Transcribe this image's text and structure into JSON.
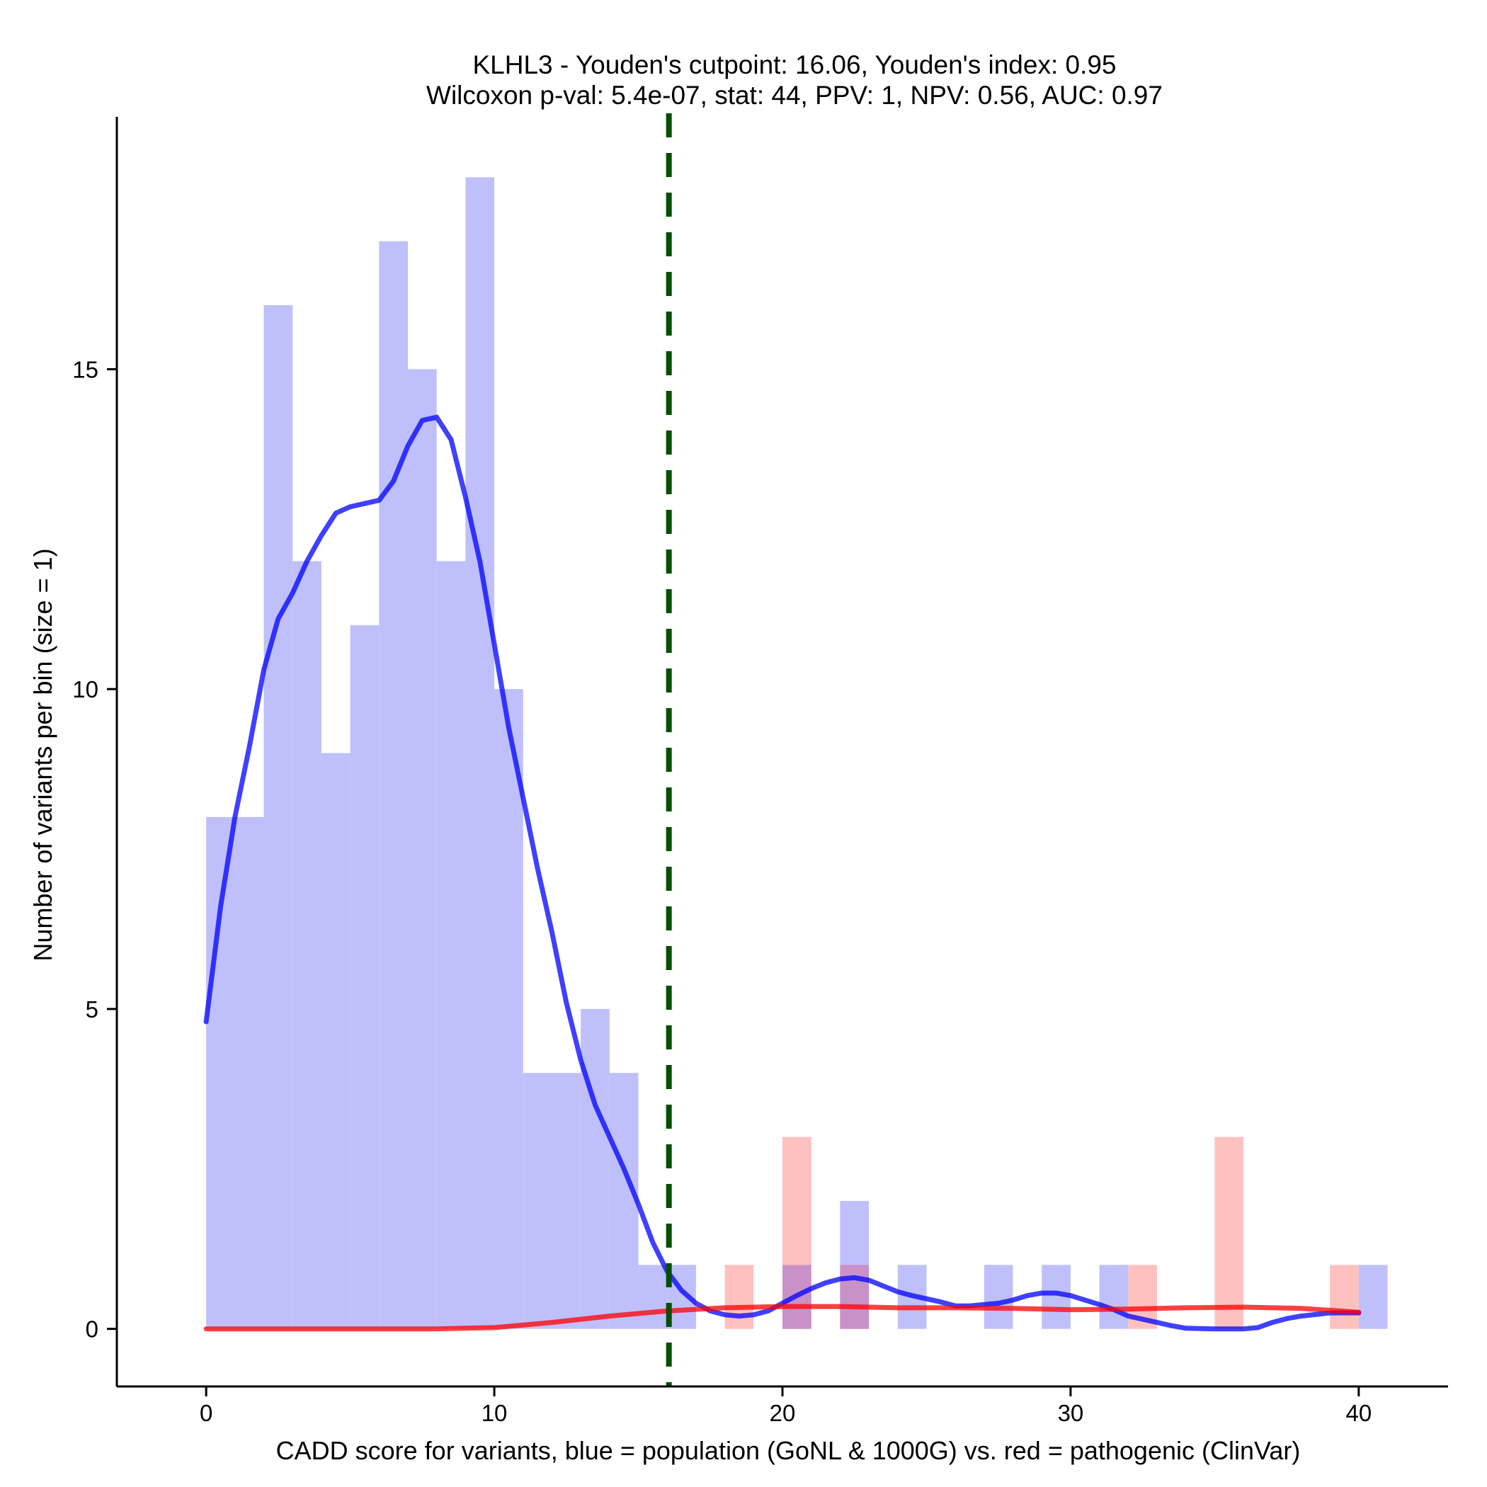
{
  "chart_data": {
    "type": "histogram",
    "title_line1": "KLHL3 - Youden's cutpoint: 16.06, Youden's index: 0.95",
    "title_line2": "Wilcoxon p-val: 5.4e-07, stat: 44, PPV: 1, NPV: 0.56, AUC: 0.97",
    "xlabel": "CADD score for variants, blue = population (GoNL & 1000G) vs. red = pathogenic (ClinVar)",
    "ylabel": "Number of variants per bin (size = 1)",
    "xlim": [
      -3.1,
      43.1
    ],
    "ylim": [
      -0.9,
      19.0
    ],
    "x_ticks": [
      0,
      10,
      20,
      30,
      40
    ],
    "x_tick_labels": [
      "0",
      "10",
      "20",
      "30",
      "40"
    ],
    "y_ticks": [
      0,
      5,
      10,
      15
    ],
    "y_tick_labels": [
      "0",
      "5",
      "10",
      "15"
    ],
    "bin_width": 1,
    "cutpoint": 16.06,
    "series": [
      {
        "name": "population (GoNL & 1000G)",
        "color": "#0000ff",
        "bar_color": "#bfbffb",
        "bins": [
          {
            "x": 0,
            "count": 8
          },
          {
            "x": 1,
            "count": 8
          },
          {
            "x": 2,
            "count": 16
          },
          {
            "x": 3,
            "count": 12
          },
          {
            "x": 4,
            "count": 9
          },
          {
            "x": 5,
            "count": 11
          },
          {
            "x": 6,
            "count": 17
          },
          {
            "x": 7,
            "count": 15
          },
          {
            "x": 8,
            "count": 12
          },
          {
            "x": 9,
            "count": 18
          },
          {
            "x": 10,
            "count": 10
          },
          {
            "x": 11,
            "count": 4
          },
          {
            "x": 12,
            "count": 4
          },
          {
            "x": 13,
            "count": 5
          },
          {
            "x": 14,
            "count": 4
          },
          {
            "x": 15,
            "count": 1
          },
          {
            "x": 16,
            "count": 1
          },
          {
            "x": 20,
            "count": 1
          },
          {
            "x": 22,
            "count": 2
          },
          {
            "x": 24,
            "count": 1
          },
          {
            "x": 27,
            "count": 1
          },
          {
            "x": 29,
            "count": 1
          },
          {
            "x": 31,
            "count": 1
          },
          {
            "x": 40,
            "count": 1
          }
        ],
        "density_curve": [
          [
            0,
            4.8
          ],
          [
            0.5,
            6.6
          ],
          [
            1,
            8.0
          ],
          [
            1.5,
            9.1
          ],
          [
            2,
            10.3
          ],
          [
            2.5,
            11.1
          ],
          [
            3,
            11.5
          ],
          [
            3.5,
            12.0
          ],
          [
            4,
            12.4
          ],
          [
            4.5,
            12.75
          ],
          [
            5,
            12.85
          ],
          [
            5.5,
            12.9
          ],
          [
            6,
            12.95
          ],
          [
            6.5,
            13.25
          ],
          [
            7,
            13.8
          ],
          [
            7.5,
            14.2
          ],
          [
            8,
            14.25
          ],
          [
            8.5,
            13.9
          ],
          [
            9,
            13.0
          ],
          [
            9.5,
            12.0
          ],
          [
            10,
            10.7
          ],
          [
            10.5,
            9.4
          ],
          [
            11,
            8.3
          ],
          [
            11.5,
            7.2
          ],
          [
            12,
            6.2
          ],
          [
            12.5,
            5.1
          ],
          [
            13,
            4.2
          ],
          [
            13.5,
            3.5
          ],
          [
            14,
            3.0
          ],
          [
            14.5,
            2.5
          ],
          [
            15,
            1.95
          ],
          [
            15.5,
            1.35
          ],
          [
            16,
            0.9
          ],
          [
            16.5,
            0.6
          ],
          [
            17,
            0.4
          ],
          [
            17.5,
            0.28
          ],
          [
            18,
            0.22
          ],
          [
            18.5,
            0.2
          ],
          [
            19,
            0.22
          ],
          [
            19.5,
            0.28
          ],
          [
            20,
            0.4
          ],
          [
            20.5,
            0.52
          ],
          [
            21,
            0.63
          ],
          [
            21.5,
            0.72
          ],
          [
            22,
            0.78
          ],
          [
            22.5,
            0.8
          ],
          [
            23,
            0.76
          ],
          [
            23.5,
            0.67
          ],
          [
            24,
            0.58
          ],
          [
            24.5,
            0.52
          ],
          [
            25,
            0.47
          ],
          [
            25.5,
            0.42
          ],
          [
            26,
            0.36
          ],
          [
            26.5,
            0.36
          ],
          [
            27,
            0.38
          ],
          [
            27.5,
            0.4
          ],
          [
            28,
            0.45
          ],
          [
            28.5,
            0.52
          ],
          [
            29,
            0.56
          ],
          [
            29.5,
            0.56
          ],
          [
            30,
            0.52
          ],
          [
            30.5,
            0.45
          ],
          [
            31,
            0.38
          ],
          [
            31.5,
            0.3
          ],
          [
            32,
            0.2
          ],
          [
            32.5,
            0.15
          ],
          [
            33,
            0.1
          ],
          [
            33.5,
            0.05
          ],
          [
            34,
            0.01
          ],
          [
            35,
            0
          ],
          [
            36,
            0
          ],
          [
            36.5,
            0.02
          ],
          [
            37,
            0.1
          ],
          [
            37.5,
            0.16
          ],
          [
            38,
            0.2
          ],
          [
            39,
            0.25
          ],
          [
            40,
            0.25
          ]
        ]
      },
      {
        "name": "pathogenic (ClinVar)",
        "color": "#ff0000",
        "bar_color": "#ffc0c0",
        "bins": [
          {
            "x": 18,
            "count": 1
          },
          {
            "x": 20,
            "count": 3
          },
          {
            "x": 22,
            "count": 1
          },
          {
            "x": 32,
            "count": 1
          },
          {
            "x": 35,
            "count": 3
          },
          {
            "x": 39,
            "count": 1
          }
        ],
        "density_curve": [
          [
            0,
            0
          ],
          [
            4,
            0
          ],
          [
            8,
            0
          ],
          [
            10,
            0.02
          ],
          [
            12,
            0.1
          ],
          [
            14,
            0.2
          ],
          [
            16,
            0.28
          ],
          [
            18,
            0.33
          ],
          [
            20,
            0.35
          ],
          [
            22,
            0.35
          ],
          [
            24,
            0.33
          ],
          [
            26,
            0.33
          ],
          [
            28,
            0.32
          ],
          [
            30,
            0.3
          ],
          [
            32,
            0.31
          ],
          [
            34,
            0.33
          ],
          [
            36,
            0.34
          ],
          [
            38,
            0.32
          ],
          [
            40,
            0.26
          ]
        ]
      }
    ],
    "overlap_bar_color": "#c892c8",
    "cutpoint_color": "#005000"
  }
}
